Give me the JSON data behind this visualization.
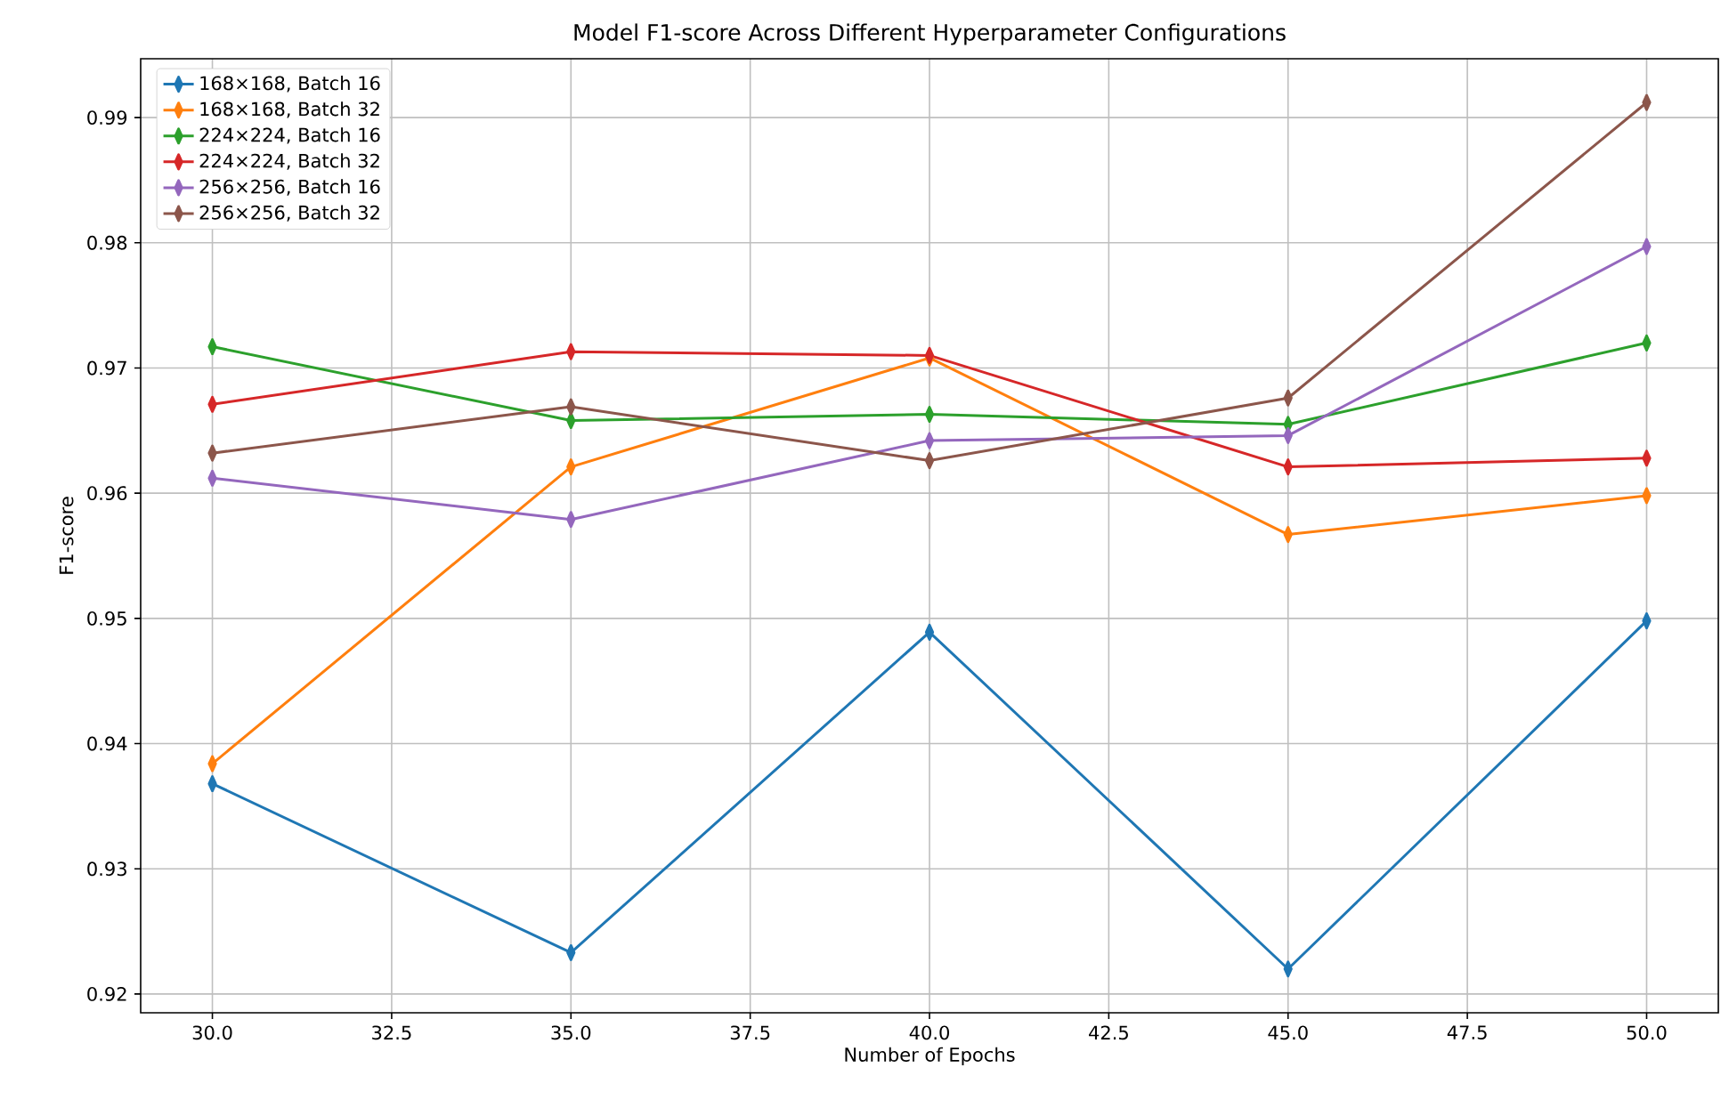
{
  "chart_data": {
    "type": "line",
    "title": "Model F1-score Across Different Hyperparameter Configurations",
    "xlabel": "Number of Epochs",
    "ylabel": "F1-score",
    "x": [
      30,
      35,
      40,
      45,
      50
    ],
    "series": [
      {
        "name": "168×168, Batch 16",
        "color": "#1f77b4",
        "values": [
          0.9368,
          0.9233,
          0.9489,
          0.922,
          0.9498
        ]
      },
      {
        "name": "168×168, Batch 32",
        "color": "#ff7f0e",
        "values": [
          0.9384,
          0.9621,
          0.9708,
          0.9567,
          0.9598
        ]
      },
      {
        "name": "224×224, Batch 16",
        "color": "#2ca02c",
        "values": [
          0.9717,
          0.9658,
          0.9663,
          0.9655,
          0.972
        ]
      },
      {
        "name": "224×224, Batch 32",
        "color": "#d62728",
        "values": [
          0.9671,
          0.9713,
          0.971,
          0.9621,
          0.9628
        ]
      },
      {
        "name": "256×256, Batch 16",
        "color": "#9467bd",
        "values": [
          0.9612,
          0.9579,
          0.9642,
          0.9646,
          0.9797
        ]
      },
      {
        "name": "256×256, Batch 32",
        "color": "#8c564b",
        "values": [
          0.9632,
          0.9669,
          0.9626,
          0.9676,
          0.9912
        ]
      }
    ],
    "xlim": [
      29,
      51
    ],
    "ylim": [
      0.9185,
      0.9947
    ],
    "xticks": [
      {
        "value": 30,
        "label": "30.0"
      },
      {
        "value": 32.5,
        "label": "32.5"
      },
      {
        "value": 35,
        "label": "35.0"
      },
      {
        "value": 37.5,
        "label": "37.5"
      },
      {
        "value": 40,
        "label": "40.0"
      },
      {
        "value": 42.5,
        "label": "42.5"
      },
      {
        "value": 45,
        "label": "45.0"
      },
      {
        "value": 47.5,
        "label": "47.5"
      },
      {
        "value": 50,
        "label": "50.0"
      }
    ],
    "yticks": [
      0.92,
      0.93,
      0.94,
      0.95,
      0.96,
      0.97,
      0.98,
      0.99
    ],
    "grid": true,
    "legend": "top left",
    "marker": "diamond",
    "line_style": "solid"
  }
}
